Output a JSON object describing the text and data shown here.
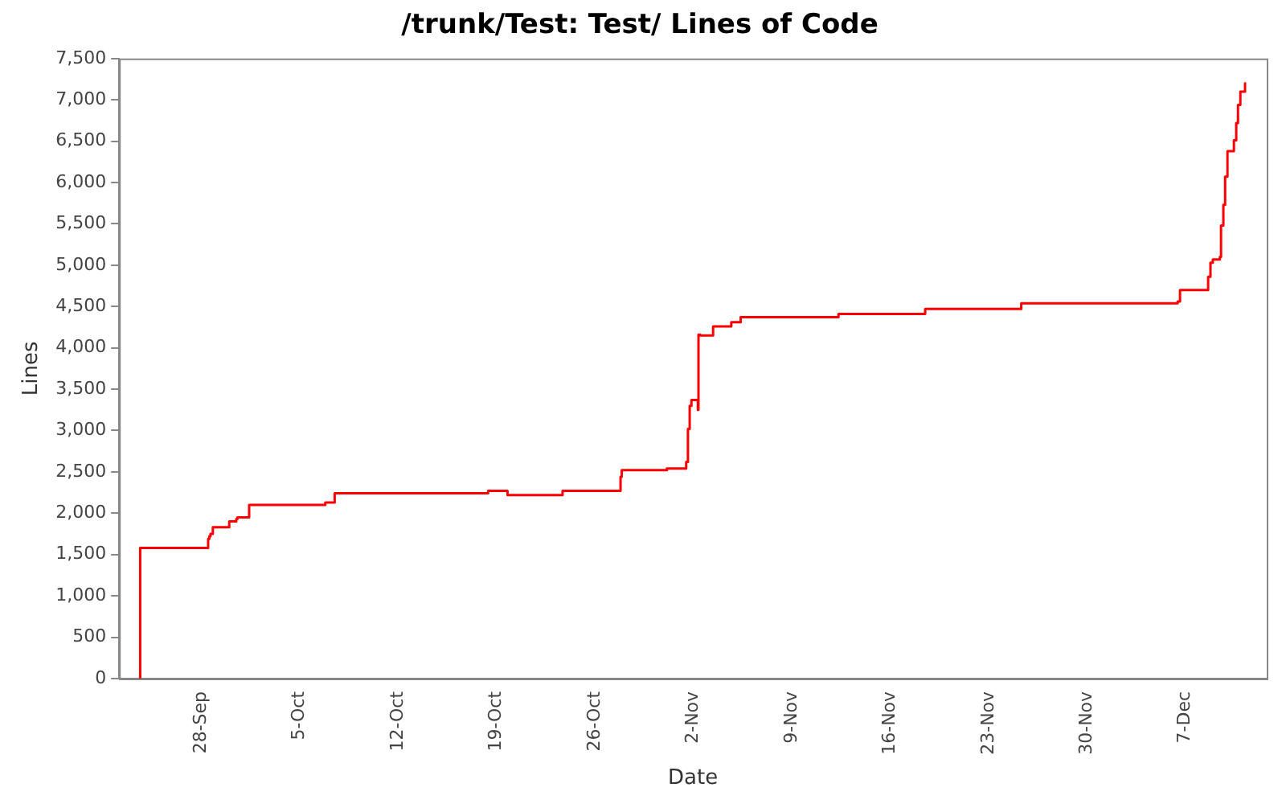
{
  "chart_data": {
    "type": "step",
    "title": "/trunk/Test: Test/ Lines of Code",
    "xlabel": "Date",
    "ylabel": "Lines",
    "marker": "none",
    "xlim": [
      "--09-22T04:00",
      "--12-12T19:00"
    ],
    "xticks": [
      {
        "value": "--09-28",
        "label": "28-Sep"
      },
      {
        "value": "--10-05",
        "label": "5-Oct"
      },
      {
        "value": "--10-12",
        "label": "12-Oct"
      },
      {
        "value": "--10-19",
        "label": "19-Oct"
      },
      {
        "value": "--10-26",
        "label": "26-Oct"
      },
      {
        "value": "--11-02",
        "label": "2-Nov"
      },
      {
        "value": "--11-09",
        "label": "9-Nov"
      },
      {
        "value": "--11-16",
        "label": "16-Nov"
      },
      {
        "value": "--11-23",
        "label": "23-Nov"
      },
      {
        "value": "--11-30",
        "label": "30-Nov"
      },
      {
        "value": "--12-07",
        "label": "7-Dec"
      }
    ],
    "ylim": [
      0,
      7500
    ],
    "yticks": [
      {
        "value": 0,
        "label": "0"
      },
      {
        "value": 500,
        "label": "500"
      },
      {
        "value": 1000,
        "label": "1,000"
      },
      {
        "value": 1500,
        "label": "1,500"
      },
      {
        "value": 2000,
        "label": "2,000"
      },
      {
        "value": 2500,
        "label": "2,500"
      },
      {
        "value": 3000,
        "label": "3,000"
      },
      {
        "value": 3500,
        "label": "3,500"
      },
      {
        "value": 4000,
        "label": "4,000"
      },
      {
        "value": 4500,
        "label": "4,500"
      },
      {
        "value": 5000,
        "label": "5,000"
      },
      {
        "value": 5500,
        "label": "5,500"
      },
      {
        "value": 6000,
        "label": "6,000"
      },
      {
        "value": 6500,
        "label": "6,500"
      },
      {
        "value": 7000,
        "label": "7,000"
      },
      {
        "value": 7500,
        "label": "7,500"
      }
    ],
    "x": [
      "--09-23T16:00",
      "--09-23T16:00",
      "--09-28T12:00",
      "--09-28T14:00",
      "--09-28T16:00",
      "--09-28T20:00",
      "--09-30T00:00",
      "--09-30T12:00",
      "--09-30T14:00",
      "--10-01T10:00",
      "--10-06T20:00",
      "--10-07T12:00",
      "--10-18T10:00",
      "--10-19T19:00",
      "--10-23T17:00",
      "--10-27T20:00",
      "--10-27T22:00",
      "--10-31T03:00",
      "--11-01T12:00",
      "--11-01T15:00",
      "--11-01T18:00",
      "--11-01T21:00",
      "--11-02T08:00",
      "--11-02T09:00",
      "--11-02T12:00",
      "--11-03T10:00",
      "--11-04T17:00",
      "--11-05T09:00",
      "--11-12T08:00",
      "--11-18T12:00",
      "--11-25T08:00",
      "--12-06T11:00",
      "--12-06T15:00",
      "--12-08T15:00",
      "--12-08T19:00",
      "--12-08T23:00",
      "--12-09T11:00",
      "--12-09T13:00",
      "--12-09T17:00",
      "--12-09T20:00",
      "--12-10T00:00",
      "--12-10T11:00",
      "--12-10T15:00",
      "--12-10T18:00",
      "--12-10T22:00",
      "--12-11T06:00",
      "--12-11T08:00"
    ],
    "series": [
      {
        "color": "#ff0000",
        "values": [
          0,
          1580,
          1690,
          1720,
          1750,
          1830,
          1900,
          1930,
          1950,
          2100,
          2130,
          2240,
          2270,
          2220,
          2270,
          2440,
          2520,
          2540,
          2620,
          3020,
          3300,
          3370,
          3250,
          4160,
          4150,
          4260,
          4310,
          4370,
          4410,
          4470,
          4540,
          4560,
          4700,
          4860,
          5030,
          5070,
          5100,
          5480,
          5730,
          6070,
          6380,
          6510,
          6720,
          6940,
          7100,
          7200,
          7200
        ]
      }
    ]
  }
}
